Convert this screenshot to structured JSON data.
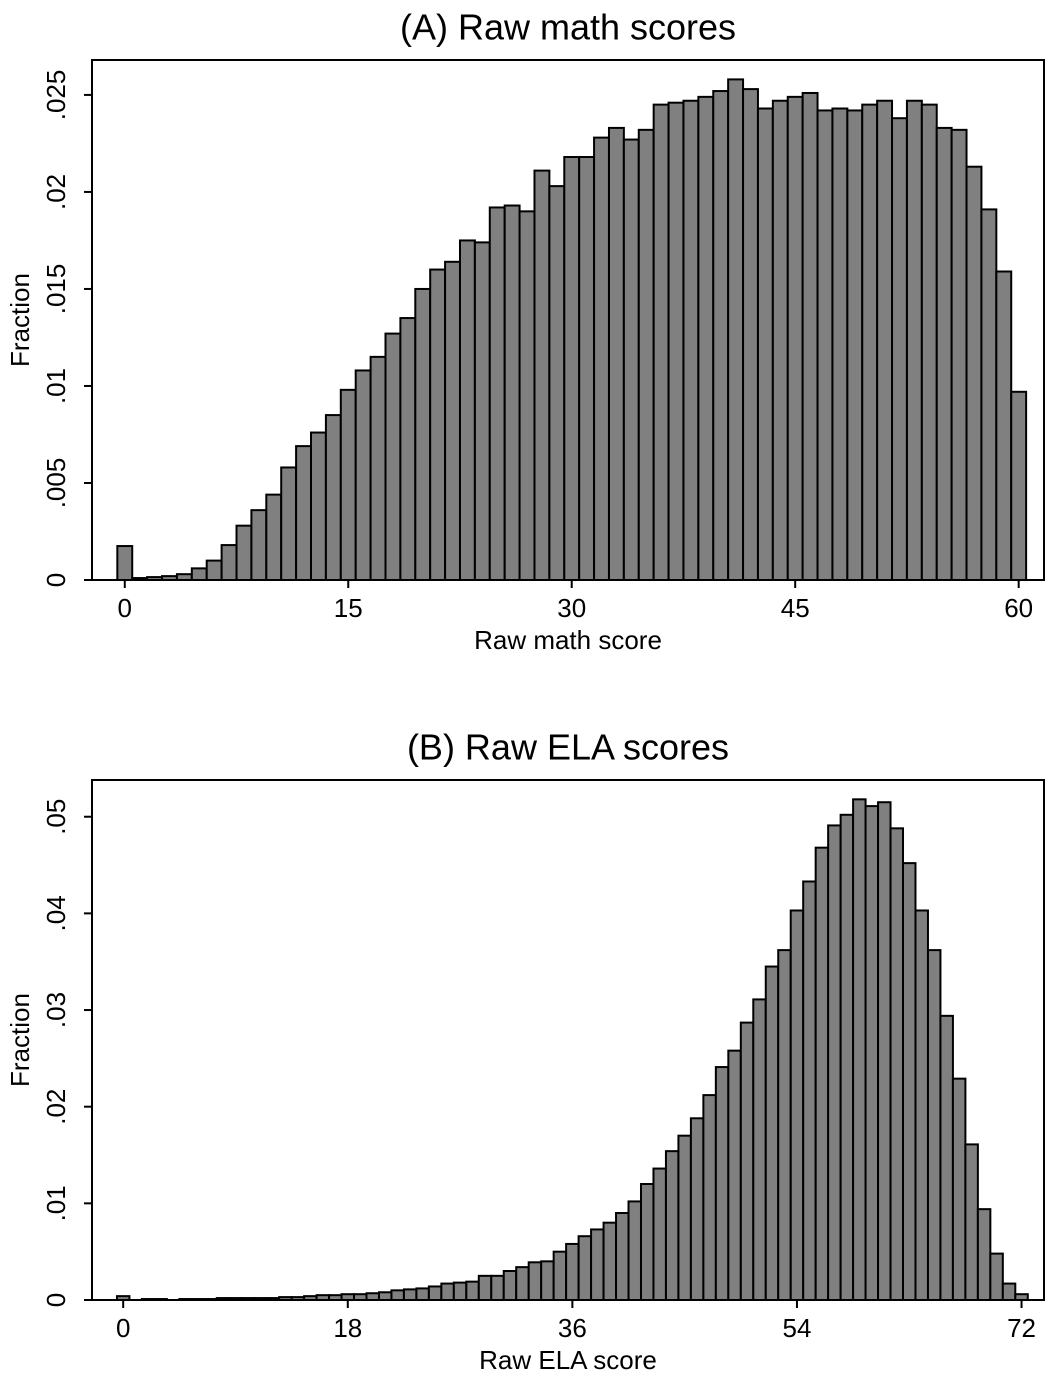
{
  "chart_data": [
    {
      "type": "histogram",
      "title": "(A) Raw math scores",
      "xlabel": "Raw math score",
      "ylabel": "Fraction",
      "color": "#808080",
      "bins": [
        -0.5,
        0.5,
        1.5,
        2.5,
        3.5,
        4.5,
        5.5,
        6.5,
        7.5,
        8.5,
        9.5,
        10.5,
        11.5,
        12.5,
        13.5,
        14.5,
        15.5,
        16.5,
        17.5,
        18.5,
        19.5,
        20.5,
        21.5,
        22.5,
        23.5,
        24.5,
        25.5,
        26.5,
        27.5,
        28.5,
        29.5,
        30.5,
        31.5,
        32.5,
        33.5,
        34.5,
        35.5,
        36.5,
        37.5,
        38.5,
        39.5,
        40.5,
        41.5,
        42.5,
        43.5,
        44.5,
        45.5,
        46.5,
        47.5,
        48.5,
        49.5,
        50.5,
        51.5,
        52.5,
        53.5,
        54.5,
        55.5,
        56.5,
        57.5,
        58.5,
        59.5,
        60.5
      ],
      "values": [
        0.00175,
        0.0001,
        0.00015,
        0.0002,
        0.0003,
        0.0006,
        0.001,
        0.0018,
        0.0028,
        0.0036,
        0.0044,
        0.0058,
        0.0069,
        0.0076,
        0.0085,
        0.0098,
        0.0108,
        0.0115,
        0.0127,
        0.0135,
        0.015,
        0.016,
        0.0164,
        0.0175,
        0.0174,
        0.0192,
        0.0193,
        0.019,
        0.0211,
        0.0203,
        0.0218,
        0.0218,
        0.0228,
        0.0233,
        0.0227,
        0.0232,
        0.0245,
        0.0246,
        0.0247,
        0.0249,
        0.0252,
        0.0258,
        0.0253,
        0.0243,
        0.0247,
        0.0249,
        0.0251,
        0.0242,
        0.0243,
        0.0242,
        0.0245,
        0.0247,
        0.0238,
        0.0247,
        0.0245,
        0.0233,
        0.0232,
        0.0213,
        0.0191,
        0.0159,
        0.0097
      ],
      "xlim": [
        -2.2,
        61.7
      ],
      "xticks": [
        0,
        15,
        30,
        45,
        60
      ],
      "ylim": [
        0,
        0.0268
      ],
      "yticks": [
        0,
        {
          "value": 0.005,
          "label": ".005"
        },
        {
          "value": 0.01,
          "label": ".01"
        },
        {
          "value": 0.015,
          "label": ".015"
        },
        {
          "value": 0.02,
          "label": ".02"
        },
        {
          "value": 0.025,
          "label": ".025"
        }
      ]
    },
    {
      "type": "histogram",
      "title": "(B) Raw ELA scores",
      "xlabel": "Raw ELA score",
      "ylabel": "Fraction",
      "color": "#808080",
      "bins": [
        -0.5,
        0.5,
        1.5,
        2.5,
        3.5,
        4.5,
        5.5,
        6.5,
        7.5,
        8.5,
        9.5,
        10.5,
        11.5,
        12.5,
        13.5,
        14.5,
        15.5,
        16.5,
        17.5,
        18.5,
        19.5,
        20.5,
        21.5,
        22.5,
        23.5,
        24.5,
        25.5,
        26.5,
        27.5,
        28.5,
        29.5,
        30.5,
        31.5,
        32.5,
        33.5,
        34.5,
        35.5,
        36.5,
        37.5,
        38.5,
        39.5,
        40.5,
        41.5,
        42.5,
        43.5,
        44.5,
        45.5,
        46.5,
        47.5,
        48.5,
        49.5,
        50.5,
        51.5,
        52.5,
        53.5,
        54.5,
        55.5,
        56.5,
        57.5,
        58.5,
        59.5,
        60.5,
        61.5,
        62.5,
        63.5,
        64.5,
        65.5,
        66.5,
        67.5,
        68.5,
        69.5,
        70.5,
        71.5,
        72.5
      ],
      "values": [
        0.0004,
        0,
        0.0001,
        0.0001,
        0,
        0.0001,
        0.0001,
        0.0001,
        0.0002,
        0.0002,
        0.0002,
        0.0002,
        0.0002,
        0.0003,
        0.0003,
        0.0004,
        0.0005,
        0.0005,
        0.0006,
        0.0006,
        0.0007,
        0.0008,
        0.001,
        0.0011,
        0.0012,
        0.0014,
        0.0017,
        0.0018,
        0.0019,
        0.0025,
        0.0025,
        0.003,
        0.0034,
        0.0039,
        0.004,
        0.005,
        0.0058,
        0.0066,
        0.0073,
        0.008,
        0.009,
        0.0102,
        0.012,
        0.0136,
        0.0154,
        0.017,
        0.0188,
        0.0212,
        0.0241,
        0.0258,
        0.0287,
        0.0311,
        0.0345,
        0.0362,
        0.0403,
        0.0433,
        0.0468,
        0.0491,
        0.0502,
        0.0518,
        0.0511,
        0.0515,
        0.0488,
        0.0452,
        0.0403,
        0.0362,
        0.0294,
        0.0229,
        0.0161,
        0.0094,
        0.0048,
        0.0017,
        0.0006
      ],
      "xlim": [
        -2.5,
        73.8
      ],
      "xticks": [
        0,
        18,
        36,
        54,
        72
      ],
      "ylim": [
        0,
        0.0538
      ],
      "yticks": [
        0,
        {
          "value": 0.01,
          "label": ".01"
        },
        {
          "value": 0.02,
          "label": ".02"
        },
        {
          "value": 0.03,
          "label": ".03"
        },
        {
          "value": 0.04,
          "label": ".04"
        },
        {
          "value": 0.05,
          "label": ".05"
        }
      ]
    }
  ]
}
